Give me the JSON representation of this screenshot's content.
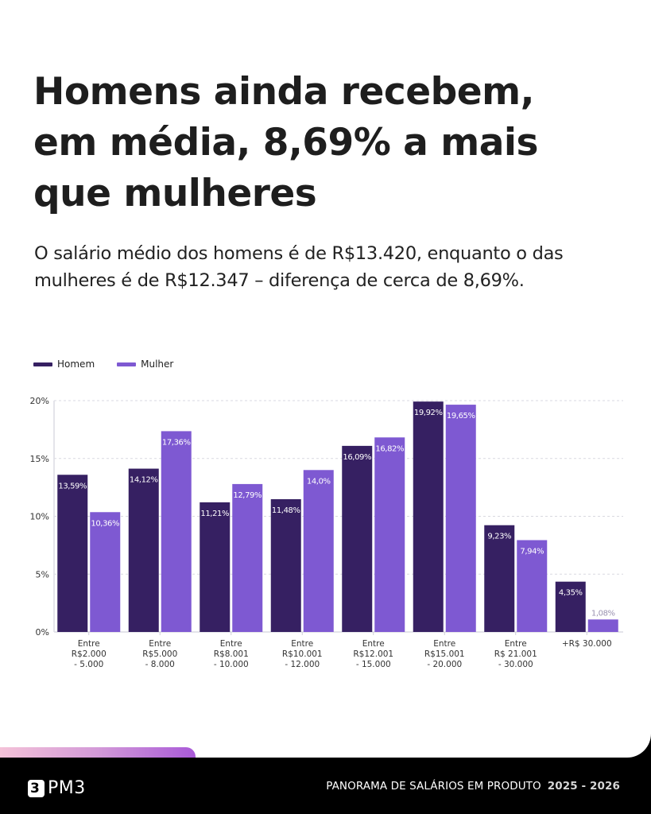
{
  "header": {
    "title": "Homens ainda recebem, em média, 8,69% a mais que mulheres",
    "subtitle": "O salário médio dos homens é de R$13.420, enquanto o das mulheres é de R$12.347 – diferença de cerca de 8,69%."
  },
  "legend": {
    "items": [
      {
        "label": "Homem",
        "color": "#362062"
      },
      {
        "label": "Mulher",
        "color": "#7e59d2"
      }
    ]
  },
  "chart_data": {
    "type": "bar",
    "title": "",
    "xlabel": "",
    "ylabel": "",
    "ylim": [
      0,
      20
    ],
    "yticks": [
      0,
      5,
      10,
      15,
      20
    ],
    "ytick_labels": [
      "0%",
      "5%",
      "10%",
      "15%",
      "20%"
    ],
    "grid": true,
    "legend_position": "top-left",
    "categories": [
      [
        "Entre",
        "R$2.000",
        "- 5.000"
      ],
      [
        "Entre",
        "R$5.000",
        "- 8.000"
      ],
      [
        "Entre",
        "R$8.001",
        "- 10.000"
      ],
      [
        "Entre",
        "R$10.001",
        "- 12.000"
      ],
      [
        "Entre",
        "R$12.001",
        "- 15.000"
      ],
      [
        "Entre",
        "R$15.001",
        "- 20.000"
      ],
      [
        "Entre",
        "R$ 21.001",
        "- 30.000"
      ],
      [
        "+R$ 30.000"
      ]
    ],
    "series": [
      {
        "name": "Homem",
        "color": "#362062",
        "values": [
          13.59,
          14.12,
          11.21,
          11.48,
          16.09,
          19.92,
          9.23,
          4.35
        ],
        "labels": [
          "13,59%",
          "14,12%",
          "11,21%",
          "11,48%",
          "16,09%",
          "19,92%",
          "9,23%",
          "4,35%"
        ]
      },
      {
        "name": "Mulher",
        "color": "#7e59d2",
        "values": [
          10.36,
          17.36,
          12.79,
          14.0,
          16.82,
          19.65,
          7.94,
          1.08
        ],
        "labels": [
          "10,36%",
          "17,36%",
          "12,79%",
          "14,0%",
          "16,82%",
          "19,65%",
          "7,94%",
          "1,08%"
        ]
      }
    ]
  },
  "footer": {
    "logo_text": "PM3",
    "logo_icon": "pm3-logo-icon",
    "report_title": "PANORAMA DE SALÁRIOS EM PRODUTO",
    "years": "2025 - 2026"
  }
}
